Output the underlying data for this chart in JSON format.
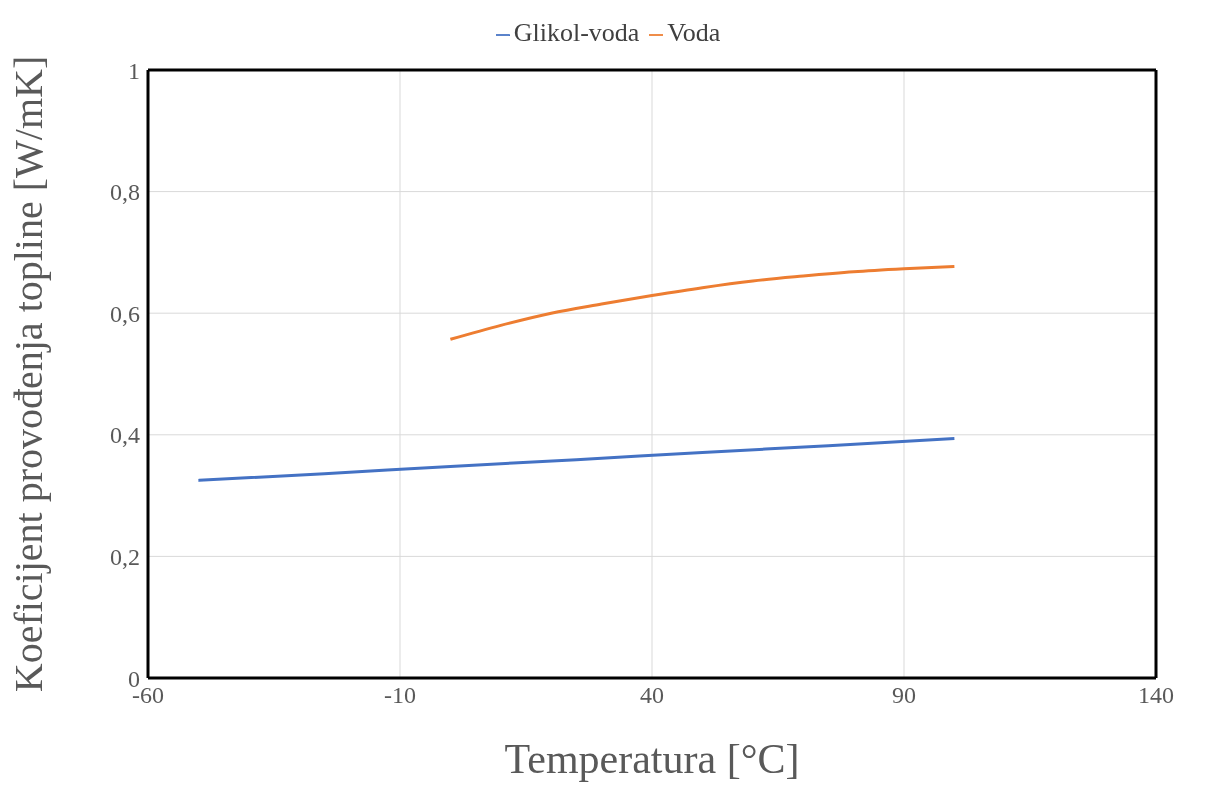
{
  "chart_data": {
    "type": "line",
    "xlabel": "Temperatura [°C]",
    "ylabel": "Koeficijent provođenja topline [W/mK]",
    "series": [
      {
        "name": "Glikol-voda",
        "color": "#4472c4",
        "x": [
          -50,
          -25,
          0,
          25,
          50,
          75,
          100
        ],
        "values": [
          0.325,
          0.336,
          0.348,
          0.359,
          0.371,
          0.382,
          0.394
        ]
      },
      {
        "name": "Voda",
        "color": "#ed7d31",
        "x": [
          0,
          10,
          20,
          30,
          40,
          50,
          60,
          70,
          80,
          90,
          100
        ],
        "values": [
          0.557,
          0.58,
          0.6,
          0.615,
          0.629,
          0.642,
          0.653,
          0.661,
          0.668,
          0.673,
          0.677
        ]
      }
    ],
    "xlim": [
      -60,
      140
    ],
    "xticks": [
      -60,
      -10,
      40,
      90,
      140
    ],
    "ylim": [
      0,
      1
    ],
    "yticks": [
      {
        "value": 0,
        "label": "0"
      },
      {
        "value": 0.2,
        "label": "0,2"
      },
      {
        "value": 0.4,
        "label": "0,4"
      },
      {
        "value": 0.6,
        "label": "0,6"
      },
      {
        "value": 0.8,
        "label": "0,8"
      },
      {
        "value": 1,
        "label": "1"
      }
    ],
    "grid": true,
    "legend": "top",
    "marker": "none",
    "line_style": "solid"
  }
}
